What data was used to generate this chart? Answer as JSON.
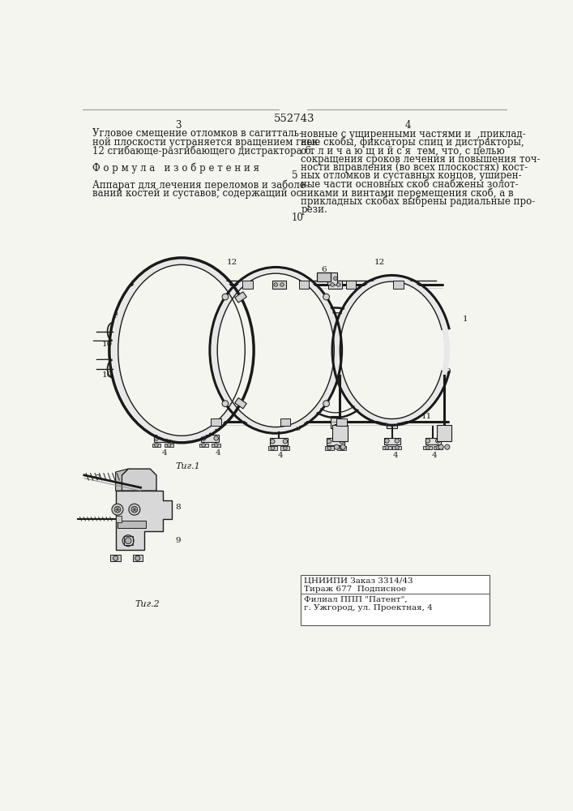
{
  "page_number_center": "552743",
  "page_num_left": "3",
  "page_num_right": "4",
  "text_left_col": [
    "Угловое смещение отломков в сагитталь-",
    "ной плоскости устраняется вращением гаек",
    "12 сгибающе-разгибающего дистрактора 6."
  ],
  "formula_heading": "Ф о р м у л а   и з о б р е т е н и я",
  "text_left_col2": [
    "Аппарат для лечения переломов и заболе-",
    "ваний костей и суставов, содержащий ос-"
  ],
  "text_right_col": [
    "новные с уширенными частями и  ,приклад-",
    "ные скобы, фиксаторы спиц и дистракторы,",
    "о т л и ч а ю щ и й с я  тем, что, с целью",
    "сокращения сроков лечения и повышения точ-",
    "ности вправления (во всех плоскостях) кост-",
    "ных отломков и суставных концов, уширен-",
    "ные части основных скоб снабжены золот-",
    "никами и винтами перемещения скоб, а в",
    "прикладных скобах выбрены радиальные про-",
    "рези."
  ],
  "fig1_caption": "Τиг.1",
  "fig2_caption": "Τиг.2",
  "publisher_lines": [
    "ЦНИИПИ Заказ 3314/43",
    "Тираж 677  Подписное",
    "Филиал ППП \"Патент\",",
    "г. Ужгород, ул. Проектная, 4"
  ],
  "bg_color": "#f5f5f0",
  "text_color": "#1a1a1a",
  "line_color": "#666666"
}
